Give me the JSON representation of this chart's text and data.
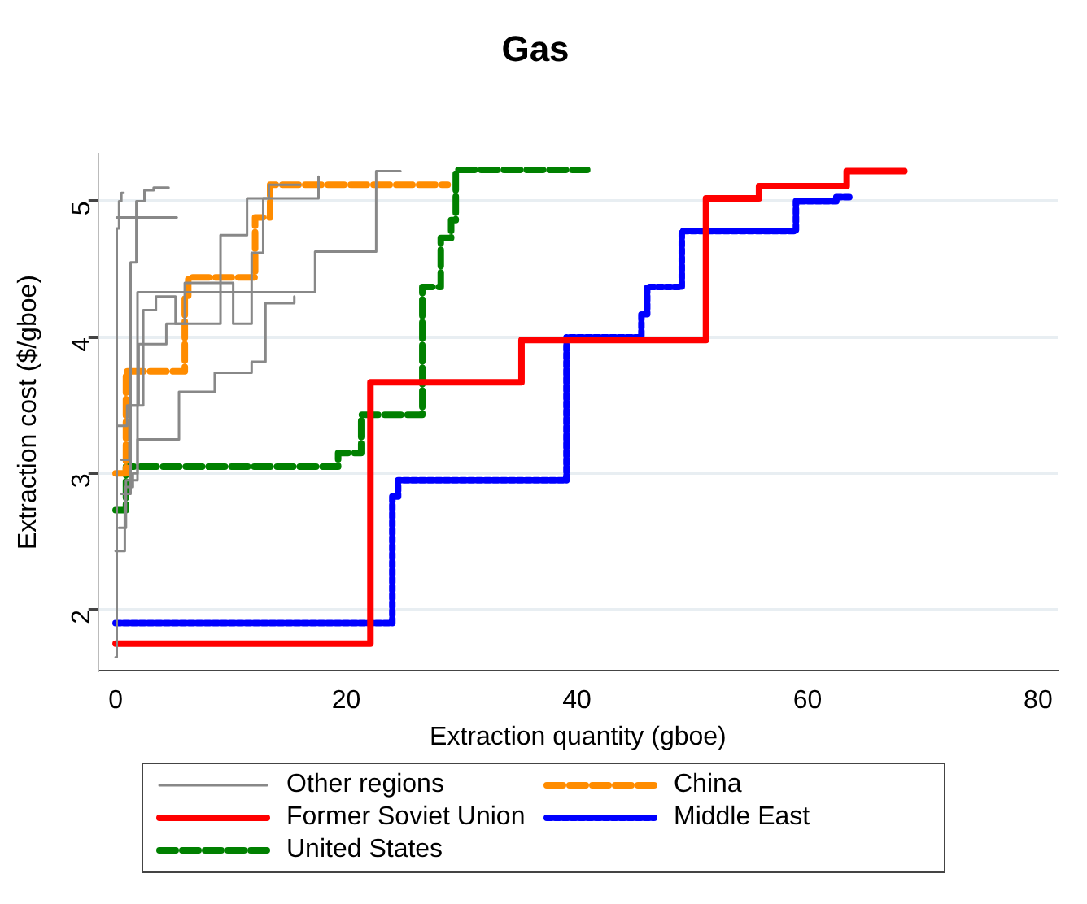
{
  "chart_data": {
    "type": "step",
    "title": "Gas",
    "xlabel": "Extraction quantity (gboe)",
    "ylabel": "Extraction cost ($/gboe)",
    "xlim": [
      -1.5,
      81.7
    ],
    "xticks": [
      0,
      20,
      40,
      60,
      80
    ],
    "ylim": [
      1.55,
      5.35
    ],
    "yticks": [
      2,
      3,
      4,
      5
    ],
    "grid": "y",
    "legend": "bottom",
    "marker": "none",
    "series": [
      {
        "name": "Other regions",
        "color": "#888888",
        "line_style": "solid",
        "x": [
          0,
          0.8,
          1.5,
          1.9,
          17.3,
          22.6,
          24.7
        ],
        "values": [
          2.43,
          2.9,
          3.0,
          4.33,
          4.63,
          5.22,
          5.22
        ]
      },
      {
        "color": "#888888",
        "line_style": "solid",
        "x": [
          0,
          0.1,
          0.3,
          0.5,
          0.7
        ],
        "values": [
          1.65,
          4.8,
          5.0,
          5.06,
          5.06
        ]
      },
      {
        "color": "#888888",
        "line_style": "solid",
        "x": [
          0.5,
          1.3,
          1.8,
          2.5,
          3.3,
          4.6
        ],
        "values": [
          2.85,
          4.55,
          5.0,
          5.08,
          5.1,
          5.1
        ]
      },
      {
        "color": "#888888",
        "line_style": "solid",
        "x": [
          0.1,
          5.3
        ],
        "values": [
          4.88,
          4.88
        ]
      },
      {
        "color": "#888888",
        "line_style": "solid",
        "x": [
          0.3,
          0.9,
          1.9,
          5.5,
          8.6,
          11.8,
          13.0,
          15.5
        ],
        "values": [
          2.6,
          2.95,
          3.25,
          3.6,
          3.74,
          3.82,
          4.25,
          4.3
        ]
      },
      {
        "color": "#888888",
        "line_style": "solid",
        "x": [
          0.5,
          1.2,
          2.4,
          3.5,
          5.2,
          9.1,
          11.4,
          13.3,
          16.0
        ],
        "values": [
          3.1,
          3.5,
          4.2,
          4.3,
          4.1,
          4.75,
          5.02,
          5.12,
          5.12
        ]
      },
      {
        "color": "#888888",
        "line_style": "solid",
        "x": [
          0.2,
          1.0,
          2.0,
          4.4,
          6.0,
          10.2,
          11.8,
          12.8,
          17.6
        ],
        "values": [
          3.35,
          3.5,
          3.95,
          4.1,
          4.4,
          4.1,
          4.62,
          5.02,
          5.18
        ]
      },
      {
        "name": "China",
        "color": "#ff8c00",
        "line_style": "dashed",
        "x": [
          0,
          0.9,
          6.0,
          6.3,
          12.1,
          13.4,
          28.8
        ],
        "values": [
          3.0,
          3.75,
          4.3,
          4.44,
          4.88,
          5.12,
          5.12
        ]
      },
      {
        "name": "Former Soviet Union",
        "color": "#ff0000",
        "line_style": "solid",
        "x": [
          0,
          22.1,
          35.2,
          51.2,
          55.8,
          63.4,
          68.4
        ],
        "values": [
          1.75,
          3.67,
          3.98,
          5.02,
          5.11,
          5.22,
          5.22
        ]
      },
      {
        "name": "Middle East",
        "color": "#0000ff",
        "line_style": "dotted",
        "x": [
          0,
          24.0,
          24.5,
          39.1,
          45.6,
          46.1,
          49.1,
          59.0,
          62.5,
          63.9
        ],
        "values": [
          1.9,
          2.83,
          2.95,
          4.0,
          4.17,
          4.37,
          4.78,
          5.0,
          5.03,
          5.03
        ]
      },
      {
        "name": "United States",
        "color": "#008000",
        "line_style": "dashed",
        "x": [
          0,
          0.9,
          19.3,
          21.3,
          26.6,
          28.2,
          29.1,
          29.5,
          40.9
        ],
        "values": [
          2.73,
          3.05,
          3.15,
          3.43,
          4.37,
          4.73,
          4.86,
          5.23,
          5.23
        ]
      }
    ]
  }
}
